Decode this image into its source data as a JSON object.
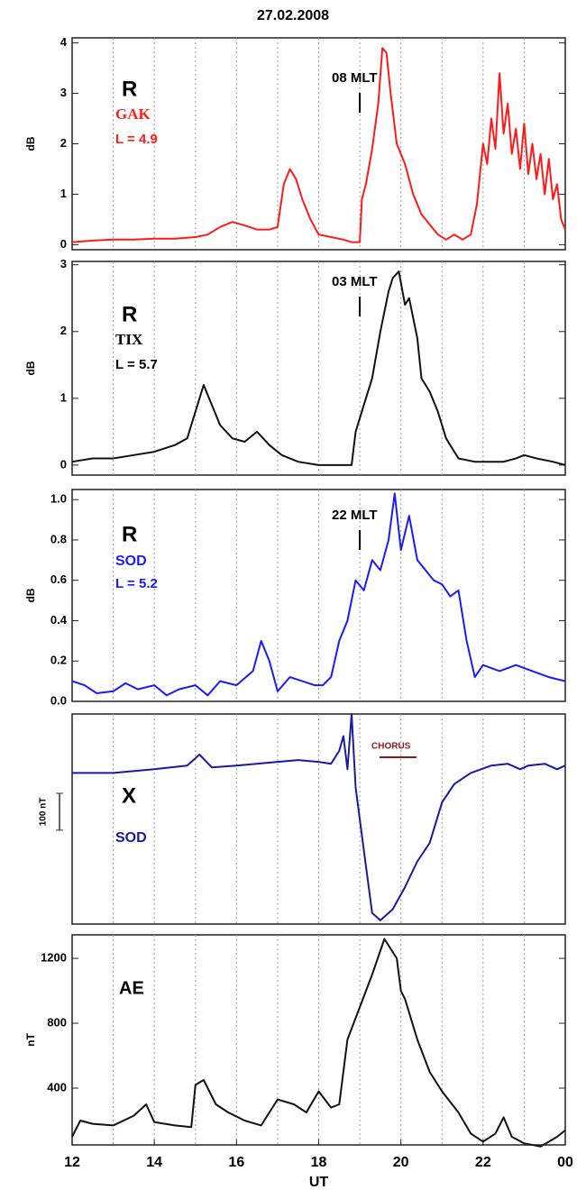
{
  "title": "27.02.2008",
  "chart_data": [
    {
      "type": "line",
      "ylabel": "dB",
      "xlim": [
        12,
        24
      ],
      "ylim": [
        -0.1,
        4.1
      ],
      "yticks": [
        0,
        1,
        2,
        3,
        4
      ],
      "xgrid": [
        13,
        14,
        15,
        16,
        17,
        18,
        19,
        20,
        21,
        22,
        23
      ],
      "annotations": [
        {
          "text": "R",
          "color": "#000000"
        },
        {
          "text": "GAK",
          "color": "#ff2020"
        },
        {
          "text": "L = 4.9",
          "color": "#ff2020"
        },
        {
          "text": "08 MLT",
          "color": "#000000"
        }
      ],
      "marker_x": 19,
      "series": [
        {
          "color": "#ff1a1a",
          "x": [
            12,
            12.5,
            13,
            13.5,
            14,
            14.5,
            15,
            15.3,
            15.6,
            15.9,
            16.2,
            16.5,
            16.8,
            17,
            17.15,
            17.3,
            17.45,
            17.6,
            17.8,
            18,
            18.3,
            18.6,
            18.8,
            19,
            19.05,
            19.15,
            19.3,
            19.45,
            19.55,
            19.65,
            19.75,
            19.9,
            20.1,
            20.3,
            20.5,
            20.7,
            20.9,
            21.1,
            21.3,
            21.5,
            21.7,
            21.85,
            22,
            22.1,
            22.2,
            22.3,
            22.4,
            22.5,
            22.6,
            22.7,
            22.8,
            22.9,
            23,
            23.1,
            23.2,
            23.3,
            23.4,
            23.5,
            23.6,
            23.7,
            23.8,
            23.9,
            24
          ],
          "values": [
            0.05,
            0.08,
            0.1,
            0.1,
            0.12,
            0.12,
            0.15,
            0.2,
            0.35,
            0.45,
            0.38,
            0.3,
            0.3,
            0.35,
            1.2,
            1.5,
            1.3,
            0.9,
            0.5,
            0.2,
            0.15,
            0.1,
            0.05,
            0.05,
            0.9,
            1.2,
            1.9,
            2.8,
            3.9,
            3.8,
            3.0,
            2.0,
            1.6,
            1.0,
            0.6,
            0.4,
            0.2,
            0.1,
            0.2,
            0.1,
            0.2,
            0.8,
            2.0,
            1.6,
            2.5,
            1.9,
            3.4,
            2.2,
            2.8,
            1.8,
            2.3,
            1.5,
            2.4,
            1.4,
            2.0,
            1.3,
            1.8,
            1.0,
            1.7,
            0.9,
            1.2,
            0.5,
            0.3
          ]
        }
      ]
    },
    {
      "type": "line",
      "ylabel": "dB",
      "xlim": [
        12,
        24
      ],
      "ylim": [
        -0.15,
        3.05
      ],
      "yticks": [
        0,
        1,
        2,
        3
      ],
      "xgrid": [
        13,
        14,
        15,
        16,
        17,
        18,
        19,
        20,
        21,
        22,
        23
      ],
      "annotations": [
        {
          "text": "R",
          "color": "#000000"
        },
        {
          "text": "TIX",
          "color": "#000000"
        },
        {
          "text": "L = 5.7",
          "color": "#000000"
        },
        {
          "text": "03 MLT",
          "color": "#000000"
        }
      ],
      "marker_x": 19,
      "series": [
        {
          "color": "#111111",
          "x": [
            12,
            12.5,
            13,
            13.5,
            14,
            14.5,
            14.8,
            15,
            15.2,
            15.4,
            15.6,
            15.9,
            16.2,
            16.5,
            16.8,
            17.1,
            17.5,
            18,
            18.5,
            18.8,
            18.9,
            19.1,
            19.3,
            19.5,
            19.7,
            19.8,
            19.95,
            20.1,
            20.2,
            20.4,
            20.5,
            20.7,
            20.9,
            21.1,
            21.4,
            21.8,
            22.2,
            22.5,
            22.8,
            23,
            23.3,
            23.7,
            24
          ],
          "values": [
            0.05,
            0.1,
            0.1,
            0.15,
            0.2,
            0.3,
            0.4,
            0.8,
            1.2,
            0.9,
            0.6,
            0.4,
            0.35,
            0.5,
            0.3,
            0.15,
            0.05,
            0,
            0,
            0,
            0.5,
            0.9,
            1.3,
            2.0,
            2.6,
            2.8,
            2.9,
            2.4,
            2.5,
            1.9,
            1.3,
            1.1,
            0.8,
            0.4,
            0.1,
            0.05,
            0.05,
            0.05,
            0.1,
            0.15,
            0.1,
            0.05,
            0
          ]
        }
      ]
    },
    {
      "type": "line",
      "ylabel": "dB",
      "xlim": [
        12,
        24
      ],
      "ylim": [
        0,
        1.05
      ],
      "yticks": [
        {
          "value": 0,
          "label": "0.0"
        },
        0.2,
        0.4,
        0.6,
        0.8,
        {
          "value": 1,
          "label": "1.0"
        }
      ],
      "xgrid": [
        13,
        14,
        15,
        16,
        17,
        18,
        19,
        20,
        21,
        22,
        23
      ],
      "annotations": [
        {
          "text": "R",
          "color": "#000000"
        },
        {
          "text": "SOD",
          "color": "#1a1aff"
        },
        {
          "text": "L = 5.2",
          "color": "#1a1aff"
        },
        {
          "text": "22 MLT",
          "color": "#000000"
        }
      ],
      "marker_x": 19,
      "series": [
        {
          "color": "#1a1aff",
          "x": [
            12,
            12.3,
            12.6,
            13,
            13.3,
            13.6,
            14,
            14.3,
            14.6,
            15,
            15.3,
            15.6,
            16,
            16.4,
            16.6,
            16.8,
            17,
            17.3,
            17.6,
            17.9,
            18.1,
            18.3,
            18.5,
            18.7,
            18.9,
            19.1,
            19.3,
            19.5,
            19.7,
            19.85,
            20,
            20.2,
            20.4,
            20.6,
            20.8,
            21,
            21.2,
            21.4,
            21.6,
            21.8,
            22,
            22.4,
            22.8,
            23.2,
            23.6,
            24
          ],
          "values": [
            0.1,
            0.08,
            0.04,
            0.05,
            0.09,
            0.06,
            0.08,
            0.03,
            0.06,
            0.08,
            0.03,
            0.1,
            0.08,
            0.15,
            0.3,
            0.2,
            0.05,
            0.12,
            0.1,
            0.08,
            0.08,
            0.12,
            0.3,
            0.4,
            0.6,
            0.55,
            0.7,
            0.65,
            0.8,
            1.03,
            0.75,
            0.92,
            0.7,
            0.65,
            0.6,
            0.58,
            0.52,
            0.55,
            0.3,
            0.12,
            0.18,
            0.15,
            0.18,
            0.15,
            0.12,
            0.1
          ]
        }
      ]
    },
    {
      "type": "line",
      "xlim": [
        12,
        24
      ],
      "ylim": [
        -450,
        120
      ],
      "xgrid": [
        13,
        14,
        15,
        16,
        17,
        18,
        19,
        20,
        21,
        22,
        23
      ],
      "annotations": [
        {
          "text": "X",
          "color": "#000000"
        },
        {
          "text": "SOD",
          "color": "#1a1aa0"
        },
        {
          "text": "CHORUS",
          "color": "#8b1a1a"
        }
      ],
      "scale_bar": {
        "value": 100,
        "label": "100 nT"
      },
      "series": [
        {
          "color": "#1a1aa0",
          "x": [
            12,
            13,
            14,
            14.8,
            15.1,
            15.4,
            16,
            17,
            17.5,
            18,
            18.3,
            18.5,
            18.6,
            18.7,
            18.8,
            18.9,
            19.1,
            19.3,
            19.5,
            19.8,
            20.1,
            20.4,
            20.7,
            21,
            21.3,
            21.7,
            22.2,
            22.6,
            22.9,
            23.1,
            23.5,
            23.8,
            24
          ],
          "values": [
            -40,
            -40,
            -30,
            -20,
            10,
            -25,
            -20,
            -10,
            -5,
            -10,
            -15,
            20,
            60,
            -30,
            120,
            -80,
            -250,
            -420,
            -440,
            -410,
            -350,
            -280,
            -230,
            -120,
            -70,
            -40,
            -20,
            -15,
            -30,
            -20,
            -15,
            -30,
            -20
          ]
        }
      ]
    },
    {
      "type": "line",
      "ylabel": "nT",
      "xlim": [
        12,
        24
      ],
      "ylim": [
        50,
        1345
      ],
      "yticks": [
        400,
        800,
        1200
      ],
      "xgrid": [
        13,
        14,
        15,
        16,
        17,
        18,
        19,
        20,
        21,
        22,
        23
      ],
      "xticks": [
        12,
        14,
        16,
        18,
        20,
        22,
        {
          "value": 24,
          "label": "00"
        }
      ],
      "xlabel": "UT",
      "annotations": [
        {
          "text": "AE",
          "color": "#000000"
        }
      ],
      "series": [
        {
          "color": "#111111",
          "x": [
            12,
            12.2,
            12.5,
            13,
            13.5,
            13.8,
            14,
            14.5,
            14.9,
            15,
            15.2,
            15.5,
            15.8,
            16.2,
            16.6,
            17,
            17.4,
            17.7,
            18,
            18.3,
            18.5,
            18.7,
            19,
            19.3,
            19.6,
            19.9,
            20,
            20.1,
            20.4,
            20.7,
            21,
            21.4,
            21.7,
            22,
            22.3,
            22.5,
            22.7,
            23,
            23.4,
            23.8,
            24
          ],
          "values": [
            100,
            200,
            180,
            170,
            230,
            300,
            190,
            170,
            160,
            420,
            450,
            300,
            250,
            200,
            170,
            330,
            300,
            250,
            380,
            280,
            300,
            700,
            900,
            1100,
            1320,
            1200,
            1000,
            950,
            700,
            500,
            380,
            250,
            120,
            70,
            120,
            220,
            100,
            60,
            40,
            100,
            140
          ]
        }
      ]
    }
  ]
}
